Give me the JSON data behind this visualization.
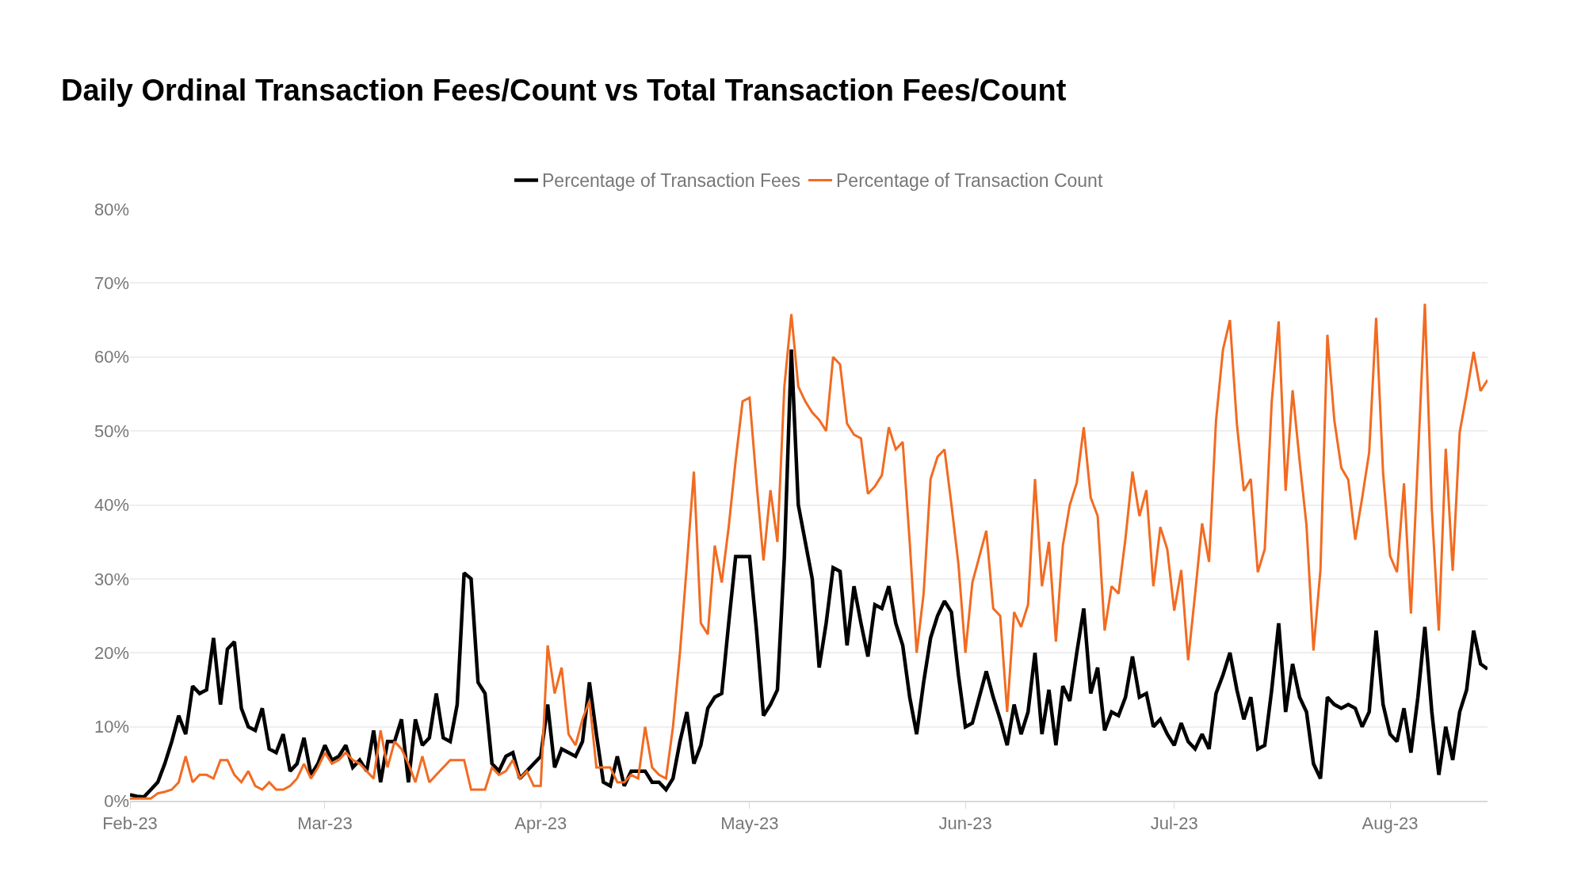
{
  "chart_data": {
    "type": "line",
    "title": "Daily Ordinal Transaction Fees/Count vs Total Transaction Fees/Count",
    "x": [
      "2023-02-01",
      "2023-02-02",
      "2023-02-03",
      "2023-02-04",
      "2023-02-05",
      "2023-02-06",
      "2023-02-07",
      "2023-02-08",
      "2023-02-09",
      "2023-02-10",
      "2023-02-11",
      "2023-02-12",
      "2023-02-13",
      "2023-02-14",
      "2023-02-15",
      "2023-02-16",
      "2023-02-17",
      "2023-02-18",
      "2023-02-19",
      "2023-02-20",
      "2023-02-21",
      "2023-02-22",
      "2023-02-23",
      "2023-02-24",
      "2023-02-25",
      "2023-02-26",
      "2023-02-27",
      "2023-02-28",
      "2023-03-01",
      "2023-03-02",
      "2023-03-03",
      "2023-03-04",
      "2023-03-05",
      "2023-03-06",
      "2023-03-07",
      "2023-03-08",
      "2023-03-09",
      "2023-03-10",
      "2023-03-11",
      "2023-03-12",
      "2023-03-13",
      "2023-03-14",
      "2023-03-15",
      "2023-03-16",
      "2023-03-17",
      "2023-03-18",
      "2023-03-19",
      "2023-03-20",
      "2023-03-21",
      "2023-03-22",
      "2023-03-23",
      "2023-03-24",
      "2023-03-25",
      "2023-03-26",
      "2023-03-27",
      "2023-03-28",
      "2023-03-29",
      "2023-03-30",
      "2023-03-31",
      "2023-04-01",
      "2023-04-02",
      "2023-04-03",
      "2023-04-04",
      "2023-04-05",
      "2023-04-06",
      "2023-04-07",
      "2023-04-08",
      "2023-04-09",
      "2023-04-10",
      "2023-04-11",
      "2023-04-12",
      "2023-04-13",
      "2023-04-14",
      "2023-04-15",
      "2023-04-16",
      "2023-04-17",
      "2023-04-18",
      "2023-04-19",
      "2023-04-20",
      "2023-04-21",
      "2023-04-22",
      "2023-04-23",
      "2023-04-24",
      "2023-04-25",
      "2023-04-26",
      "2023-04-27",
      "2023-04-28",
      "2023-04-29",
      "2023-04-30",
      "2023-05-01",
      "2023-05-02",
      "2023-05-03",
      "2023-05-04",
      "2023-05-05",
      "2023-05-06",
      "2023-05-07",
      "2023-05-08",
      "2023-05-09",
      "2023-05-10",
      "2023-05-11",
      "2023-05-12",
      "2023-05-13",
      "2023-05-14",
      "2023-05-15",
      "2023-05-16",
      "2023-05-17",
      "2023-05-18",
      "2023-05-19",
      "2023-05-20",
      "2023-05-21",
      "2023-05-22",
      "2023-05-23",
      "2023-05-24",
      "2023-05-25",
      "2023-05-26",
      "2023-05-27",
      "2023-05-28",
      "2023-05-29",
      "2023-05-30",
      "2023-05-31",
      "2023-06-01",
      "2023-06-02",
      "2023-06-03",
      "2023-06-04",
      "2023-06-05",
      "2023-06-06",
      "2023-06-07",
      "2023-06-08",
      "2023-06-09",
      "2023-06-10",
      "2023-06-11",
      "2023-06-12",
      "2023-06-13",
      "2023-06-14",
      "2023-06-15",
      "2023-06-16",
      "2023-06-17",
      "2023-06-18",
      "2023-06-19",
      "2023-06-20",
      "2023-06-21",
      "2023-06-22",
      "2023-06-23",
      "2023-06-24",
      "2023-06-25",
      "2023-06-26",
      "2023-06-27",
      "2023-06-28",
      "2023-06-29",
      "2023-06-30",
      "2023-07-01",
      "2023-07-02",
      "2023-07-03",
      "2023-07-04",
      "2023-07-05",
      "2023-07-06",
      "2023-07-07",
      "2023-07-08",
      "2023-07-09",
      "2023-07-10",
      "2023-07-11",
      "2023-07-12",
      "2023-07-13",
      "2023-07-14",
      "2023-07-15",
      "2023-07-16",
      "2023-07-17",
      "2023-07-18",
      "2023-07-19",
      "2023-07-20",
      "2023-07-21",
      "2023-07-22",
      "2023-07-23",
      "2023-07-24",
      "2023-07-25",
      "2023-07-26",
      "2023-07-27",
      "2023-07-28",
      "2023-07-29",
      "2023-07-30",
      "2023-07-31",
      "2023-08-01",
      "2023-08-02",
      "2023-08-03",
      "2023-08-04",
      "2023-08-05",
      "2023-08-06",
      "2023-08-07",
      "2023-08-08",
      "2023-08-09",
      "2023-08-10",
      "2023-08-11",
      "2023-08-12",
      "2023-08-13",
      "2023-08-14",
      "2023-08-15"
    ],
    "series": [
      {
        "name": "Percentage of Transaction Fees",
        "color": "#000000",
        "values": [
          0.8,
          0.6,
          0.5,
          1.5,
          2.5,
          5,
          8,
          11.5,
          9,
          15.5,
          14.5,
          15,
          22,
          13,
          20.5,
          21.5,
          12.5,
          10,
          9.5,
          12.5,
          7,
          6.5,
          9,
          4,
          5,
          8.5,
          3.5,
          5,
          7.5,
          5.5,
          6,
          7.5,
          4.5,
          5.5,
          4,
          9.5,
          2.5,
          8,
          8,
          11,
          2.5,
          11,
          7.5,
          8.5,
          14.5,
          8.5,
          8,
          13,
          30.8,
          30,
          16,
          14.5,
          5,
          4,
          6,
          6.5,
          3,
          4,
          5,
          6,
          13,
          4.5,
          7,
          6.5,
          6,
          8,
          16,
          9,
          2.5,
          2,
          6,
          2,
          4,
          4,
          4,
          2.5,
          2.5,
          1.5,
          3,
          8,
          12,
          5,
          7.5,
          12.5,
          14,
          14.5,
          24,
          33,
          33,
          33,
          23,
          11.5,
          13,
          15,
          33,
          61,
          40,
          35,
          30,
          18,
          24,
          31.5,
          31,
          21,
          29,
          24,
          19.5,
          26.5,
          26,
          29,
          24,
          21,
          14,
          9,
          16,
          22,
          25,
          27,
          25.5,
          17,
          10,
          10.5,
          14,
          17.5,
          14,
          11,
          7.5,
          13,
          9,
          12,
          20,
          9,
          15,
          7.5,
          15.5,
          13.5,
          20,
          26,
          14.5,
          18,
          9.5,
          12,
          11.5,
          14,
          19.5,
          14,
          14.5,
          10,
          11,
          9,
          7.5,
          10.5,
          8,
          7,
          9,
          7,
          14.5,
          17,
          20,
          15,
          11,
          14,
          7,
          7.5,
          15,
          24,
          12,
          18.5,
          14,
          12,
          5,
          3,
          14,
          13,
          12.5,
          13,
          12.5,
          10,
          12,
          23,
          13,
          9,
          8,
          12.5,
          6.5,
          14,
          23.5,
          12,
          3.5,
          10,
          5.5,
          12,
          15,
          23,
          18.5,
          17.8
        ]
      },
      {
        "name": "Percentage of Transaction Count",
        "color": "#f26b21",
        "values": [
          0.3,
          0.3,
          0.3,
          0.3,
          1,
          1.2,
          1.5,
          2.5,
          6,
          2.5,
          3.5,
          3.5,
          3,
          5.5,
          5.5,
          3.5,
          2.5,
          4,
          2,
          1.5,
          2.5,
          1.5,
          1.5,
          2,
          3,
          5,
          3,
          4.5,
          6.5,
          5,
          5.5,
          6.5,
          5.5,
          5,
          4,
          3,
          9.5,
          4.5,
          8,
          7,
          5,
          2.5,
          6,
          2.5,
          3.5,
          4.5,
          5.5,
          5.5,
          5.5,
          1.5,
          1.5,
          1.5,
          4.5,
          3.5,
          4,
          5.5,
          3,
          4,
          2,
          2,
          21,
          14.5,
          18,
          9,
          7.5,
          11,
          13.5,
          4.5,
          4.5,
          4.5,
          2.5,
          2.5,
          3.5,
          3,
          10,
          4.5,
          3.5,
          3,
          10,
          20,
          32,
          44.5,
          24,
          22.5,
          34.5,
          29.5,
          37,
          46,
          54,
          54.5,
          43,
          32.5,
          42,
          35,
          56,
          65.8,
          56,
          54,
          52.5,
          51.5,
          50,
          60,
          59,
          51,
          49.5,
          49,
          41.5,
          42.5,
          44,
          50.5,
          47.5,
          48.5,
          35,
          20,
          28,
          43.5,
          46.5,
          47.5,
          40,
          32,
          20,
          29.5,
          33,
          36.5,
          26,
          25,
          12,
          25.5,
          23.5,
          26.5,
          43.5,
          29,
          35,
          21.5,
          34.5,
          40,
          43,
          50.5,
          41,
          38.5,
          23,
          29,
          28,
          35.5,
          44.5,
          38.5,
          42,
          29,
          37,
          34,
          25.7,
          31.2,
          19,
          28,
          37.5,
          32.3,
          51.4,
          61,
          65,
          50.9,
          41.9,
          43.5,
          30.9,
          34,
          53.9,
          64.8,
          41.9,
          55.5,
          46,
          37.2,
          20.3,
          31.2,
          63,
          51.4,
          45,
          43.4,
          35.3,
          41,
          47.1,
          65.3,
          44.3,
          33.1,
          30.9,
          42.9,
          25.3,
          46,
          67.2,
          39.4,
          23,
          47.6,
          31.1,
          49.8,
          55,
          60.7,
          55.4,
          56.9
        ]
      }
    ],
    "xlim": [
      "2023-02-01",
      "2023-08-15"
    ],
    "xticks": [
      {
        "value": "2023-02-01",
        "label": "Feb-23"
      },
      {
        "value": "2023-03-01",
        "label": "Mar-23"
      },
      {
        "value": "2023-04-01",
        "label": "Apr-23"
      },
      {
        "value": "2023-05-01",
        "label": "May-23"
      },
      {
        "value": "2023-06-01",
        "label": "Jun-23"
      },
      {
        "value": "2023-07-01",
        "label": "Jul-23"
      },
      {
        "value": "2023-08-01",
        "label": "Aug-23"
      }
    ],
    "ylim": [
      0,
      80
    ],
    "yticks": [
      {
        "value": 0,
        "label": "0%"
      },
      {
        "value": 10,
        "label": "10%"
      },
      {
        "value": 20,
        "label": "20%"
      },
      {
        "value": 30,
        "label": "30%"
      },
      {
        "value": 40,
        "label": "40%"
      },
      {
        "value": 50,
        "label": "50%"
      },
      {
        "value": 60,
        "label": "60%"
      },
      {
        "value": 70,
        "label": "70%"
      },
      {
        "value": 80,
        "label": "80%"
      }
    ],
    "grid": "y",
    "legend": "top",
    "line_style": "solid"
  }
}
